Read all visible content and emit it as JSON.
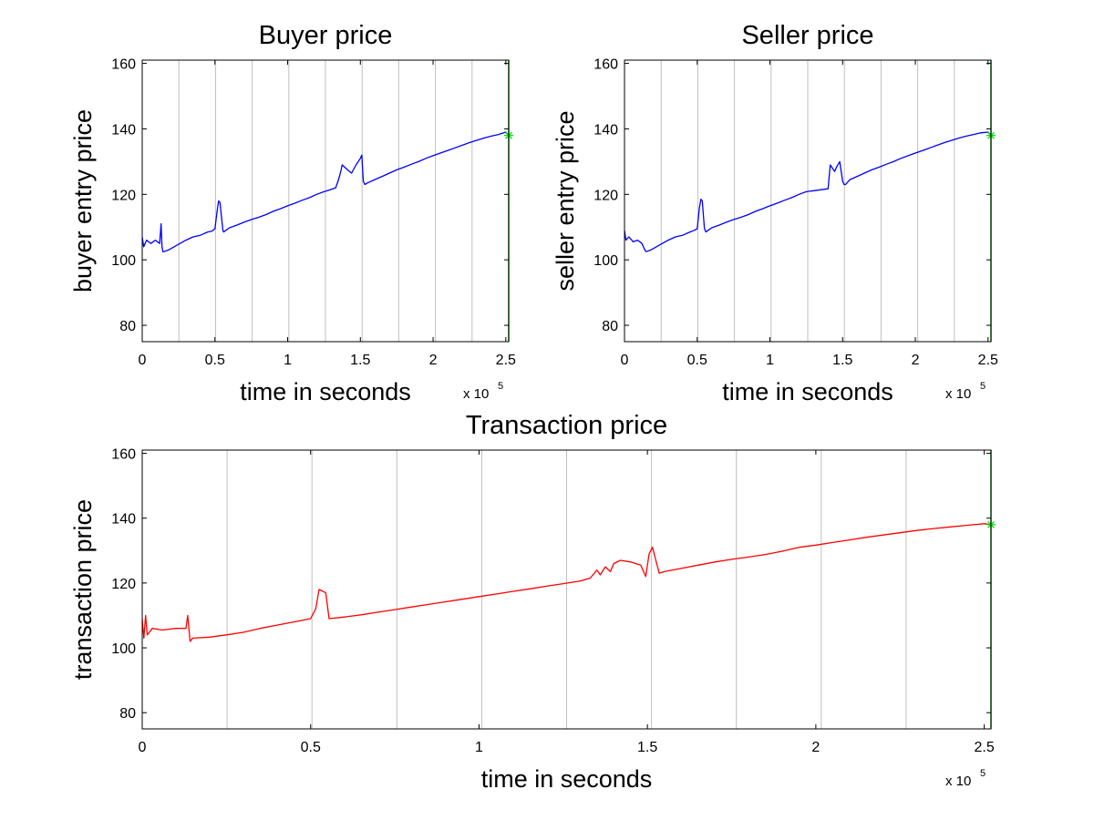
{
  "figure": {
    "background": "#ffffff"
  },
  "chart_data": [
    {
      "id": "buyer",
      "type": "line",
      "title": "Buyer price",
      "xlabel": "time in seconds",
      "ylabel": "buyer entry price",
      "x_exponent_label": "x 10",
      "x_exponent_power": "5",
      "xlim": [
        0,
        252000
      ],
      "ylim": [
        75,
        161
      ],
      "xticks": [
        0,
        50000,
        100000,
        150000,
        200000,
        250000
      ],
      "xtick_labels": [
        "0",
        "0.5",
        "1",
        "1.5",
        "2",
        "2.5"
      ],
      "yticks": [
        80,
        100,
        120,
        140,
        160
      ],
      "ytick_labels": [
        "80",
        "100",
        "120",
        "140",
        "160"
      ],
      "day_boundaries": [
        25200,
        50400,
        75600,
        100800,
        126000,
        151200,
        176400,
        201600,
        226800
      ],
      "end_line": {
        "x": 252000,
        "color": "#00a000"
      },
      "end_marker": {
        "x": 252000,
        "y": 138,
        "symbol": "*",
        "color": "#00dd00"
      },
      "grid": false,
      "series": [
        {
          "color": "#0000ff",
          "x": [
            0,
            1000,
            3000,
            6000,
            9000,
            12000,
            13000,
            13600,
            14200,
            15000,
            18000,
            22000,
            26000,
            30000,
            35000,
            40000,
            45000,
            48000,
            50000,
            51500,
            52500,
            53500,
            55500,
            56000,
            57500,
            60000,
            65000,
            70000,
            75000,
            80000,
            85000,
            90000,
            95000,
            100000,
            105000,
            110000,
            115000,
            120000,
            125000,
            130000,
            133000,
            135000,
            136500,
            137500,
            140000,
            142500,
            144000,
            147000,
            150000,
            151000,
            152000,
            153000,
            155000,
            160000,
            165000,
            170000,
            175000,
            180000,
            185000,
            190000,
            195000,
            200000,
            205000,
            210000,
            215000,
            220000,
            225000,
            230000,
            235000,
            240000,
            245000,
            250000,
            252000
          ],
          "y": [
            107,
            104,
            106,
            105,
            106,
            105,
            111,
            104,
            102.5,
            102.5,
            103,
            104,
            105,
            106,
            107,
            107.5,
            108.5,
            108.8,
            109.5,
            115,
            118,
            117.5,
            109,
            108.5,
            109,
            109.8,
            110.6,
            111.5,
            112.3,
            113,
            113.8,
            114.8,
            115.6,
            116.5,
            117.3,
            118.2,
            119,
            120,
            120.8,
            121.5,
            122,
            124.5,
            127,
            129,
            128,
            127,
            126.5,
            129,
            131,
            132,
            124,
            123,
            123.5,
            124.5,
            125.5,
            126.5,
            127.5,
            128.3,
            129.2,
            130,
            131,
            131.8,
            132.6,
            133.4,
            134.2,
            135,
            135.8,
            136.5,
            137.2,
            137.8,
            138.3,
            139,
            138
          ]
        }
      ]
    },
    {
      "id": "seller",
      "type": "line",
      "title": "Seller price",
      "xlabel": "time in seconds",
      "ylabel": "seller entry price",
      "x_exponent_label": "x 10",
      "x_exponent_power": "5",
      "xlim": [
        0,
        252000
      ],
      "ylim": [
        75,
        161
      ],
      "xticks": [
        0,
        50000,
        100000,
        150000,
        200000,
        250000
      ],
      "xtick_labels": [
        "0",
        "0.5",
        "1",
        "1.5",
        "2",
        "2.5"
      ],
      "yticks": [
        80,
        100,
        120,
        140,
        160
      ],
      "ytick_labels": [
        "80",
        "100",
        "120",
        "140",
        "160"
      ],
      "day_boundaries": [
        25200,
        50400,
        75600,
        100800,
        126000,
        151200,
        176400,
        201600,
        226800
      ],
      "end_line": {
        "x": 252000,
        "color": "#00a000"
      },
      "end_marker": {
        "x": 252000,
        "y": 138,
        "symbol": "*",
        "color": "#00dd00"
      },
      "grid": false,
      "series": [
        {
          "color": "#0000ff",
          "x": [
            0,
            1000,
            3000,
            6000,
            9000,
            12000,
            14000,
            15000,
            18000,
            22000,
            26000,
            30000,
            35000,
            40000,
            45000,
            48000,
            50000,
            51500,
            52500,
            53500,
            55000,
            56000,
            57500,
            60000,
            65000,
            70000,
            75000,
            80000,
            85000,
            90000,
            95000,
            100000,
            105000,
            110000,
            115000,
            120000,
            125000,
            140000,
            141500,
            143000,
            144500,
            146000,
            148000,
            150000,
            151000,
            152000,
            153000,
            155000,
            160000,
            165000,
            170000,
            175000,
            180000,
            185000,
            190000,
            195000,
            200000,
            205000,
            210000,
            215000,
            220000,
            225000,
            230000,
            235000,
            240000,
            245000,
            250000,
            252000
          ],
          "y": [
            109,
            106,
            107,
            105.5,
            106,
            105,
            103,
            102.5,
            103,
            104,
            105,
            106,
            107,
            107.5,
            108.5,
            109,
            109.5,
            116,
            118.5,
            118,
            109.5,
            108.5,
            109,
            109.8,
            110.6,
            111.5,
            112.3,
            113,
            113.8,
            114.8,
            115.6,
            116.5,
            117.3,
            118.2,
            119,
            120,
            120.8,
            121.7,
            129,
            128,
            127,
            128.5,
            130,
            124,
            123,
            123,
            123.5,
            124.5,
            125.5,
            126.5,
            127.5,
            128.3,
            129.2,
            130,
            131,
            131.8,
            132.6,
            133.4,
            134.2,
            135,
            135.8,
            136.5,
            137.2,
            137.8,
            138.3,
            138.8,
            139,
            138
          ]
        }
      ]
    },
    {
      "id": "transaction",
      "type": "line",
      "title": "Transaction price",
      "xlabel": "time in seconds",
      "ylabel": "transaction price",
      "x_exponent_label": "x 10",
      "x_exponent_power": "5",
      "xlim": [
        0,
        252000
      ],
      "ylim": [
        75,
        161
      ],
      "xticks": [
        0,
        50000,
        100000,
        150000,
        200000,
        250000
      ],
      "xtick_labels": [
        "0",
        "0.5",
        "1",
        "1.5",
        "2",
        "2.5"
      ],
      "yticks": [
        80,
        100,
        120,
        140,
        160
      ],
      "ytick_labels": [
        "80",
        "100",
        "120",
        "140",
        "160"
      ],
      "day_boundaries": [
        25200,
        50400,
        75600,
        100800,
        126000,
        151200,
        176400,
        201600,
        226800
      ],
      "end_line": {
        "x": 252000,
        "color": "#00a000"
      },
      "end_marker": {
        "x": 252000,
        "y": 138,
        "symbol": "*",
        "color": "#00dd00"
      },
      "grid": false,
      "series": [
        {
          "color": "#ff0000",
          "x": [
            0,
            500,
            1000,
            1500,
            3000,
            6000,
            10000,
            13000,
            13500,
            14200,
            15000,
            20000,
            25000,
            30000,
            35000,
            40000,
            45000,
            50000,
            51500,
            52500,
            54500,
            55500,
            60000,
            65000,
            70000,
            75000,
            80000,
            85000,
            90000,
            95000,
            100000,
            105000,
            110000,
            115000,
            120000,
            125000,
            130000,
            133000,
            135000,
            136000,
            137500,
            139000,
            140000,
            142000,
            145000,
            148000,
            149500,
            150500,
            151500,
            152500,
            153500,
            155000,
            160000,
            165000,
            170000,
            175000,
            180000,
            185000,
            190000,
            195000,
            200000,
            205000,
            210000,
            215000,
            220000,
            225000,
            230000,
            235000,
            240000,
            245000,
            250000,
            252000
          ],
          "y": [
            109,
            103,
            110,
            104,
            106,
            105.5,
            106,
            106,
            110,
            102,
            103,
            103.3,
            104,
            104.8,
            106,
            107,
            108,
            109,
            112,
            118,
            117,
            109,
            109.5,
            110.2,
            111,
            111.8,
            112.6,
            113.4,
            114.2,
            115,
            115.8,
            116.6,
            117.4,
            118.2,
            119,
            119.8,
            120.6,
            121.5,
            124,
            122.5,
            125,
            123.5,
            126,
            127,
            126.5,
            125.5,
            122,
            129,
            131,
            127,
            123,
            123.5,
            124.5,
            125.5,
            126.5,
            127.3,
            128,
            128.8,
            129.8,
            131,
            131.7,
            132.5,
            133.3,
            134.1,
            134.8,
            135.5,
            136.2,
            136.8,
            137.3,
            137.8,
            138.3,
            138
          ]
        }
      ]
    }
  ]
}
